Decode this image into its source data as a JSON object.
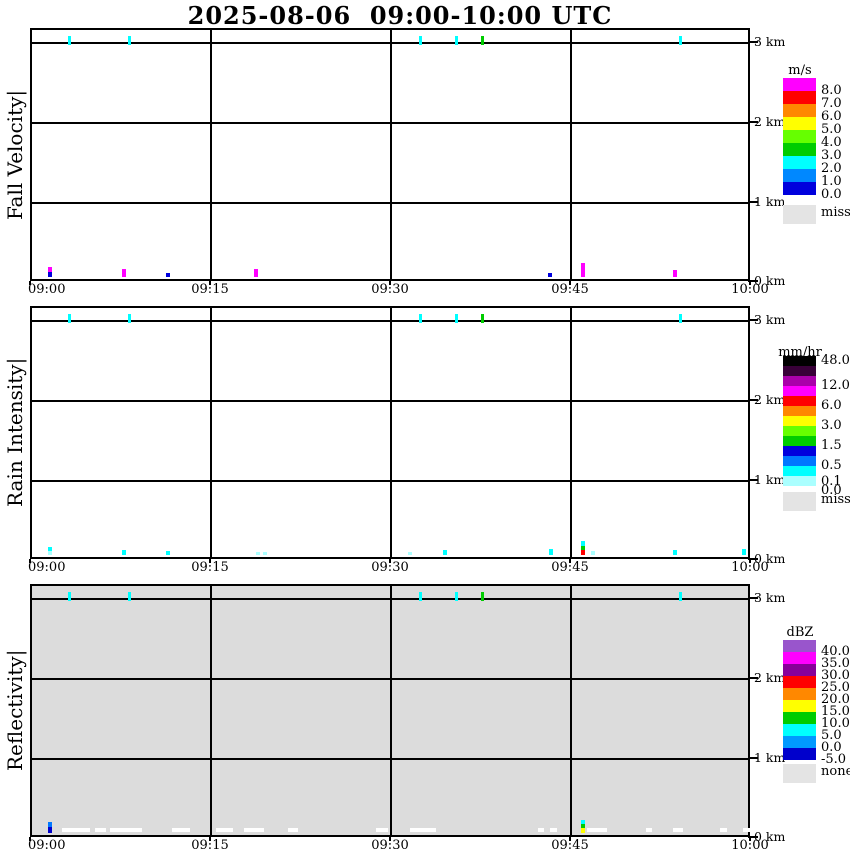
{
  "title": "2025-08-06  09:00-10:00 UTC",
  "x_axis": {
    "ticks": [
      "09:00",
      "09:15",
      "09:30",
      "09:45",
      "10:00"
    ],
    "minutes_span": 60
  },
  "y_axis": {
    "ticks": [
      "3 km",
      "2 km",
      "1 km",
      "0 km"
    ],
    "km_range": [
      0,
      3.2
    ]
  },
  "colors": {
    "grid": "#000000",
    "reflectivity_background": "#DCDCDC",
    "missing_grey": "#E4E4E4",
    "missing_dash_white": "#FFFFFF"
  },
  "chart_data": [
    {
      "id": "fall-velocity",
      "type": "heatmap",
      "ylabel": "Fall Velocity|",
      "unit": "m/s",
      "background": "#FFFFFF",
      "x_ticks": [
        "09:00",
        "09:15",
        "09:30",
        "09:45",
        "10:00"
      ],
      "y_ticks": [
        "3 km",
        "2 km",
        "1 km",
        "0 km"
      ],
      "legend": {
        "title": "m/s",
        "bands": [
          "#FF00FF",
          "#FF0000",
          "#FF8800",
          "#FFFF00",
          "#66FF00",
          "#00CC00",
          "#00FFFF",
          "#0088FF",
          "#0000DD"
        ],
        "labels": [
          {
            "text": "8.0",
            "at": 1
          },
          {
            "text": "7.0",
            "at": 2
          },
          {
            "text": "6.0",
            "at": 3
          },
          {
            "text": "5.0",
            "at": 4
          },
          {
            "text": "4.0",
            "at": 5
          },
          {
            "text": "3.0",
            "at": 6
          },
          {
            "text": "2.0",
            "at": 7
          },
          {
            "text": "1.0",
            "at": 8
          },
          {
            "text": "0.0",
            "at": 9
          }
        ],
        "miss_label": "miss",
        "miss_color": "#E4E4E4"
      },
      "events_3km": [
        {
          "t": 3.3,
          "color": "#00FFFF"
        },
        {
          "t": 8.3,
          "color": "#00FFFF"
        },
        {
          "t": 32.5,
          "color": "#00FFFF"
        },
        {
          "t": 35.5,
          "color": "#00FFFF"
        },
        {
          "t": 37.7,
          "color": "#00CC00"
        },
        {
          "t": 54.2,
          "color": "#00FFFF"
        }
      ],
      "events_0km": [
        {
          "t": 1.67,
          "stack": [
            {
              "color": "#FF00FF",
              "h": 5
            },
            {
              "color": "#0000DD",
              "h": 5
            }
          ]
        },
        {
          "t": 7.8,
          "stack": [
            {
              "color": "#FF00FF",
              "h": 8
            }
          ]
        },
        {
          "t": 11.5,
          "stack": [
            {
              "color": "#0000DD",
              "h": 4
            }
          ]
        },
        {
          "t": 18.8,
          "stack": [
            {
              "color": "#FF00FF",
              "h": 8
            }
          ]
        },
        {
          "t": 43.3,
          "stack": [
            {
              "color": "#0000DD",
              "h": 4
            }
          ]
        },
        {
          "t": 46.1,
          "stack": [
            {
              "color": "#FF00FF",
              "h": 14
            }
          ]
        },
        {
          "t": 53.75,
          "stack": [
            {
              "color": "#FF00FF",
              "h": 7
            }
          ]
        }
      ],
      "dashes_0km": []
    },
    {
      "id": "rain-intensity",
      "type": "heatmap",
      "ylabel": "Rain Intensity|",
      "unit": "mm/hr",
      "background": "#FFFFFF",
      "x_ticks": [
        "09:00",
        "09:15",
        "09:30",
        "09:45",
        "10:00"
      ],
      "y_ticks": [
        "3 km",
        "2 km",
        "1 km",
        "0 km"
      ],
      "legend": {
        "title": "mm/hr",
        "bands": [
          "#000000",
          "#380038",
          "#AA00AA",
          "#FF00FF",
          "#FF0000",
          "#FF8800",
          "#FFFF00",
          "#66FF00",
          "#00CC00",
          "#0000DD",
          "#0077FF",
          "#00FFFF",
          "#AAFFFF"
        ],
        "labels": [
          {
            "text": "48.0",
            "at": 0.5
          },
          {
            "text": "12.0",
            "at": 3
          },
          {
            "text": "6.0",
            "at": 5
          },
          {
            "text": "3.0",
            "at": 7
          },
          {
            "text": "1.5",
            "at": 9
          },
          {
            "text": "0.5",
            "at": 11
          },
          {
            "text": "0.1",
            "at": 12.6
          },
          {
            "text": "0.0",
            "at": 13.5
          }
        ],
        "miss_label": "miss",
        "miss_color": "#E4E4E4"
      },
      "events_3km": [
        {
          "t": 3.3,
          "color": "#00FFFF"
        },
        {
          "t": 8.3,
          "color": "#00FFFF"
        },
        {
          "t": 32.5,
          "color": "#00FFFF"
        },
        {
          "t": 35.5,
          "color": "#00FFFF"
        },
        {
          "t": 37.7,
          "color": "#00CC00"
        },
        {
          "t": 54.2,
          "color": "#00FFFF"
        }
      ],
      "events_0km": [
        {
          "t": 1.67,
          "stack": [
            {
              "color": "#00FFFF",
              "h": 4
            },
            {
              "color": "#AAFFFF",
              "h": 4
            }
          ]
        },
        {
          "t": 7.8,
          "stack": [
            {
              "color": "#00FFFF",
              "h": 5
            }
          ]
        },
        {
          "t": 11.5,
          "stack": [
            {
              "color": "#00FFFF",
              "h": 4
            }
          ]
        },
        {
          "t": 19.0,
          "stack": [
            {
              "color": "#AAFFFF",
              "h": 3
            }
          ]
        },
        {
          "t": 19.6,
          "stack": [
            {
              "color": "#AAFFFF",
              "h": 3
            }
          ]
        },
        {
          "t": 31.7,
          "stack": [
            {
              "color": "#AAFFFF",
              "h": 3
            }
          ]
        },
        {
          "t": 34.6,
          "stack": [
            {
              "color": "#00FFFF",
              "h": 5
            }
          ]
        },
        {
          "t": 43.4,
          "stack": [
            {
              "color": "#00FFFF",
              "h": 6
            }
          ]
        },
        {
          "t": 46.1,
          "stack": [
            {
              "color": "#00FFFF",
              "h": 5
            },
            {
              "color": "#00CC00",
              "h": 4
            },
            {
              "color": "#FF0000",
              "h": 5
            }
          ]
        },
        {
          "t": 46.9,
          "stack": [
            {
              "color": "#AAFFFF",
              "h": 4
            }
          ]
        },
        {
          "t": 53.75,
          "stack": [
            {
              "color": "#00FFFF",
              "h": 5
            }
          ]
        },
        {
          "t": 59.5,
          "stack": [
            {
              "color": "#00FFFF",
              "h": 6
            }
          ]
        }
      ],
      "dashes_0km": []
    },
    {
      "id": "reflectivity",
      "type": "heatmap",
      "ylabel": "Reflectivity|",
      "unit": "dBZ",
      "background": "#DCDCDC",
      "x_ticks": [
        "09:00",
        "09:15",
        "09:30",
        "09:45",
        "10:00"
      ],
      "y_ticks": [
        "3 km",
        "2 km",
        "1 km",
        "0 km"
      ],
      "legend": {
        "title": "dBZ",
        "bands": [
          "#9955CC",
          "#FF00FF",
          "#880099",
          "#FF0000",
          "#FF8800",
          "#FFFF00",
          "#00CC00",
          "#00FFFF",
          "#0099FF",
          "#0000CC"
        ],
        "labels": [
          {
            "text": "40.0",
            "at": 1
          },
          {
            "text": "35.0",
            "at": 2
          },
          {
            "text": "30.0",
            "at": 3
          },
          {
            "text": "25.0",
            "at": 4
          },
          {
            "text": "20.0",
            "at": 5
          },
          {
            "text": "15.0",
            "at": 6
          },
          {
            "text": "10.0",
            "at": 7
          },
          {
            "text": "5.0",
            "at": 8
          },
          {
            "text": "0.0",
            "at": 9
          },
          {
            "text": "-5.0",
            "at": 10
          }
        ],
        "miss_label": "none",
        "miss_color": "#E4E4E4"
      },
      "events_3km": [
        {
          "t": 3.3,
          "color": "#00FFFF"
        },
        {
          "t": 8.3,
          "color": "#00FFFF"
        },
        {
          "t": 32.5,
          "color": "#00FFFF"
        },
        {
          "t": 35.5,
          "color": "#00FFFF"
        },
        {
          "t": 37.7,
          "color": "#00CC00"
        },
        {
          "t": 54.2,
          "color": "#00FFFF"
        }
      ],
      "events_0km": [
        {
          "t": 1.67,
          "stack": [
            {
              "color": "#0077FF",
              "h": 5
            },
            {
              "color": "#0000CC",
              "h": 6
            }
          ]
        },
        {
          "t": 46.1,
          "stack": [
            {
              "color": "#00FFFF",
              "h": 4
            },
            {
              "color": "#00CC00",
              "h": 4
            },
            {
              "color": "#FFFF00",
              "h": 5
            }
          ]
        }
      ],
      "dashes_0km": [
        {
          "t0": 2.7,
          "t1": 5.0
        },
        {
          "t0": 5.4,
          "t1": 6.3
        },
        {
          "t0": 6.7,
          "t1": 9.3
        },
        {
          "t0": 11.8,
          "t1": 13.3
        },
        {
          "t0": 15.5,
          "t1": 16.9
        },
        {
          "t0": 17.8,
          "t1": 19.5
        },
        {
          "t0": 21.5,
          "t1": 22.3
        },
        {
          "t0": 28.8,
          "t1": 29.8
        },
        {
          "t0": 31.7,
          "t1": 33.8
        },
        {
          "t0": 42.3,
          "t1": 42.8
        },
        {
          "t0": 43.3,
          "t1": 43.9
        },
        {
          "t0": 46.4,
          "t1": 48.1
        },
        {
          "t0": 51.3,
          "t1": 51.8
        },
        {
          "t0": 53.6,
          "t1": 54.4
        },
        {
          "t0": 57.5,
          "t1": 58.1
        },
        {
          "t0": 59.4,
          "t1": 60.0
        }
      ]
    }
  ]
}
